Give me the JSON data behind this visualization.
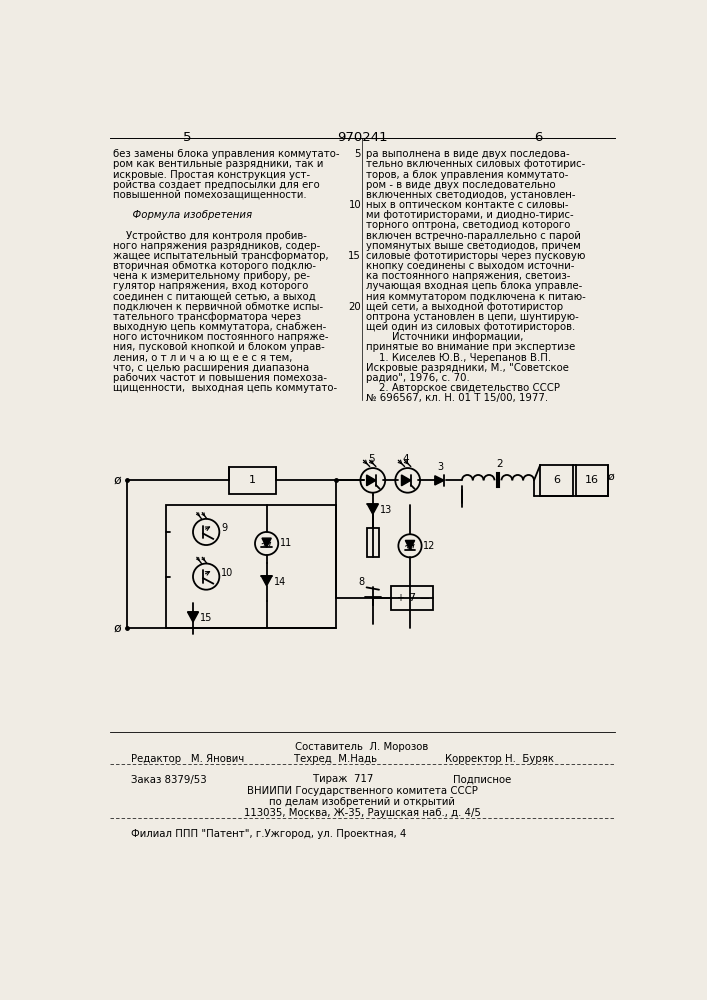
{
  "bg_color": "#f0ece4",
  "header_number": "970241",
  "header_page_left": "5",
  "header_page_right": "6",
  "left_col_text": [
    "без замены блока управления коммутато-",
    "ром как вентильные разрядники, так и",
    "искровые. Простая конструкция уст-",
    "ройства создает предпосылки для его",
    "повышенной помехозащищенности.",
    "",
    "      Формула изобретения",
    "",
    "    Устройство для контроля пробив-",
    "ного напряжения разрядников, содер-",
    "жащее испытательный трансформатор,",
    "вторичная обмотка которого подклю-",
    "чена к измерительному прибору, ре-",
    "гулятор напряжения, вход которого",
    "соединен с питающей сетью, а выход",
    "подключен к первичной обмотке испы-",
    "тательного трансформатора через",
    "выходную цепь коммутатора, снабжен-",
    "ного источником постоянного напряже-",
    "ния, пусковой кнопкой и блоком управ-",
    "ления, о т л и ч а ю щ е е с я тем,",
    "что, с целью расширения диапазона",
    "рабочих частот и повышения помехоза-",
    "щищенности,  выходная цепь коммутато-"
  ],
  "right_col_text": [
    "ра выполнена в виде двух последова-",
    "тельно включенных силовых фототирис-",
    "торов, а блок управления коммутато-",
    "ром - в виде двух последовательно",
    "включенных светодиодов, установлен-",
    "ных в оптическом контакте с силовы-",
    "ми фототиристорами, и диодно-тирис-",
    "торного оптрона, светодиод которого",
    "включен встречно-параллельно с парой",
    "упомянутых выше светодиодов, причем",
    "силовые фототиристоры через пусковую",
    "кнопку соединены с выходом источни-",
    "ка постоянного напряжения, светоиз-",
    "лучающая входная цепь блока управле-",
    "ния коммутатором подключена к питаю-",
    "щей сети, а выходной фототиристор",
    "оптрона установлен в цепи, шунтирую-",
    "щей один из силовых фототиристоров.",
    "        Источники информации,",
    "принятые во внимание при экспертизе",
    "    1. Киселев Ю.В., Черепанов В.П.",
    "Искровые разрядники, М., \"Советское",
    "радио\", 1976, с. 70.",
    "    2. Авторское свидетельство СССР",
    "№ 696567, кл. H. 01 T 15/00, 1977."
  ],
  "line_numbers": {
    "0": "5",
    "5": "10",
    "10": "15",
    "15": "20"
  },
  "footer_composer": "Составитель  Л. Морозов",
  "footer_editor": "Редактор   М. Янович",
  "footer_tech": "Техред  М.Надь",
  "footer_corrector": "Корректор Н.  Буряк",
  "footer_order": "Заказ 8379/53",
  "footer_print": "Тираж  717",
  "footer_sub": "Подписное",
  "footer_org1": "ВНИИПИ Государственного комитета СССР",
  "footer_org2": "по делам изобретений и открытий",
  "footer_org3": "113035, Москва, Ж-35, Раушская наб., д. 4/5",
  "footer_branch": "Филиал ППП \"Патент\", г.Ужгород, ул. Проектная, 4"
}
